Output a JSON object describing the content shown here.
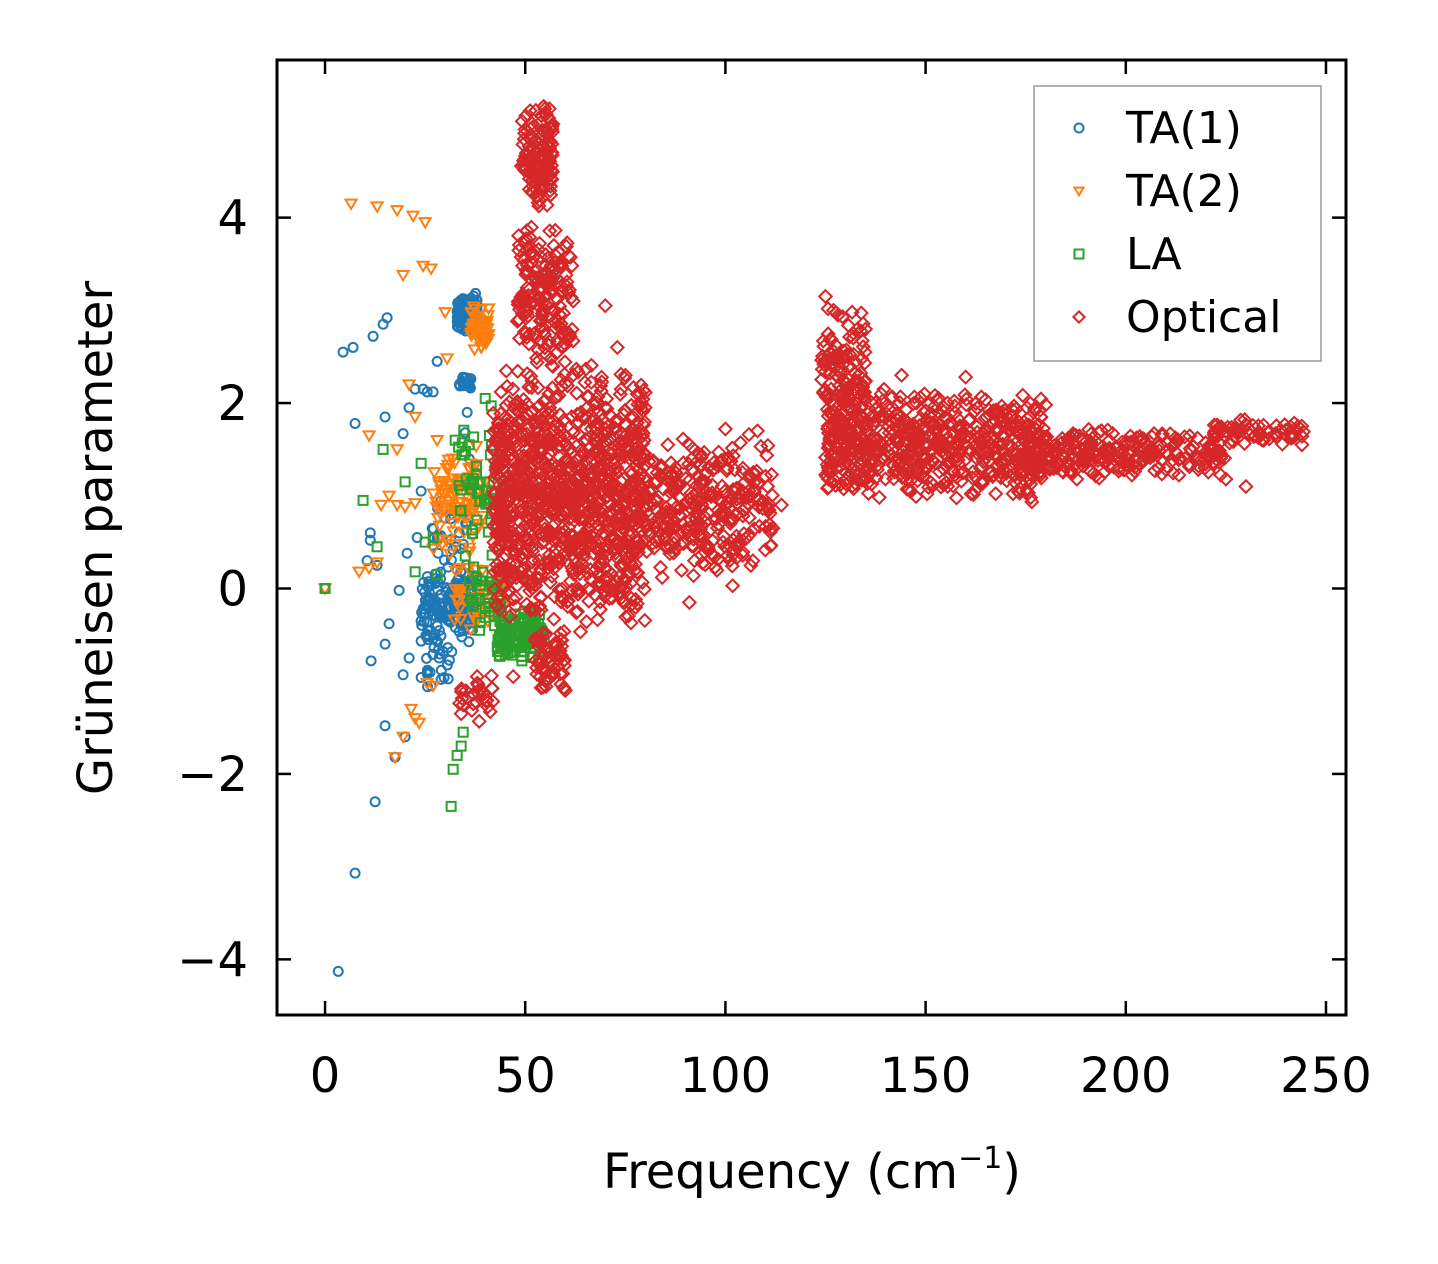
{
  "chart_data": {
    "type": "scatter",
    "title": "",
    "xlabel": "Frequency (cm",
    "xlabel_sup": "−1",
    "xlabel_close": ")",
    "ylabel": "Grüneisen parameter",
    "xlim": [
      -12,
      255
    ],
    "ylim": [
      -4.6,
      5.7
    ],
    "xticks": [
      0,
      50,
      100,
      150,
      200,
      250
    ],
    "xtick_labels": [
      "0",
      "50",
      "100",
      "150",
      "200",
      "250"
    ],
    "yticks": [
      -4,
      -2,
      0,
      2,
      4
    ],
    "ytick_labels": [
      "−4",
      "−2",
      "0",
      "2",
      "4"
    ],
    "grid": false,
    "legend_position": "top-right",
    "series": [
      {
        "name": "TA(1)",
        "marker": "circle",
        "color": "#1f77b4",
        "points": [
          [
            0,
            0
          ],
          [
            3.3,
            -4.13
          ],
          [
            7.5,
            -3.07
          ],
          [
            12.5,
            -2.3
          ],
          [
            17.5,
            -1.82
          ],
          [
            15,
            -1.48
          ],
          [
            20,
            -1.6
          ],
          [
            11.5,
            -0.78
          ],
          [
            15,
            -0.6
          ],
          [
            16,
            -0.38
          ],
          [
            19.5,
            -0.93
          ],
          [
            21,
            -0.75
          ],
          [
            24,
            -0.96
          ],
          [
            26.5,
            -1.05
          ],
          [
            29,
            -0.98
          ],
          [
            18.5,
            -0.02
          ],
          [
            24,
            -0.35
          ],
          [
            25.5,
            -0.52
          ],
          [
            13,
            0.25
          ],
          [
            10.5,
            0.3
          ],
          [
            20.5,
            0.38
          ],
          [
            23,
            0.55
          ],
          [
            11.3,
            0.52
          ],
          [
            11.3,
            0.6
          ],
          [
            7.5,
            1.78
          ],
          [
            19.5,
            1.67
          ],
          [
            15,
            1.85
          ],
          [
            21,
            1.95
          ],
          [
            22.5,
            2.15
          ],
          [
            24.5,
            2.15
          ],
          [
            25.5,
            2.12
          ],
          [
            27,
            2.12
          ],
          [
            4.5,
            2.55
          ],
          [
            7,
            2.6
          ],
          [
            12,
            2.72
          ],
          [
            14.5,
            2.85
          ],
          [
            15.5,
            2.92
          ],
          [
            24,
            1.05
          ],
          [
            28,
            2.45
          ],
          [
            33,
            0.2
          ],
          [
            35,
            1.12
          ],
          [
            35,
            1.68
          ],
          [
            35.5,
            1.9
          ],
          [
            28.5,
            -0.75
          ],
          [
            29.5,
            -0.68
          ],
          [
            33.5,
            0.6
          ],
          [
            36,
            1.4
          ],
          [
            26.5,
            0.05
          ],
          [
            27.5,
            -0.5
          ],
          [
            31,
            -0.3
          ]
        ],
        "clusters": [
          {
            "x": [
              33,
              38
            ],
            "y": [
              2.75,
              3.2
            ],
            "n": 160
          },
          {
            "x": [
              33.5,
              36.5
            ],
            "y": [
              2.15,
              2.3
            ],
            "n": 25
          },
          {
            "x": [
              24,
              38
            ],
            "y": [
              -0.6,
              0.25
            ],
            "n": 140
          },
          {
            "x": [
              26,
              36
            ],
            "y": [
              -0.5,
              1.3
            ],
            "n": 40
          },
          {
            "x": [
              25,
              32
            ],
            "y": [
              -1.1,
              -0.45
            ],
            "n": 20
          }
        ]
      },
      {
        "name": "TA(2)",
        "marker": "triangle-down",
        "color": "#ff7f0e",
        "points": [
          [
            6.5,
            4.15
          ],
          [
            13,
            4.12
          ],
          [
            18,
            4.08
          ],
          [
            22,
            4.02
          ],
          [
            25,
            3.95
          ],
          [
            19.5,
            3.38
          ],
          [
            24.5,
            3.48
          ],
          [
            26.5,
            3.45
          ],
          [
            30,
            2.98
          ],
          [
            30.5,
            2.48
          ],
          [
            21,
            2.2
          ],
          [
            11,
            1.65
          ],
          [
            18,
            1.5
          ],
          [
            22.5,
            1.85
          ],
          [
            28,
            1.6
          ],
          [
            8.5,
            0.18
          ],
          [
            11,
            0.22
          ],
          [
            13,
            0.28
          ],
          [
            14,
            0.9
          ],
          [
            16,
            1.0
          ],
          [
            18,
            0.9
          ],
          [
            20,
            0.88
          ],
          [
            22.5,
            0.92
          ],
          [
            17.5,
            -1.82
          ],
          [
            19.5,
            -1.6
          ],
          [
            21.5,
            -1.3
          ],
          [
            23.5,
            -1.45
          ],
          [
            25.5,
            -1.02
          ],
          [
            27,
            -1.05
          ],
          [
            22.5,
            -1.4
          ],
          [
            0,
            0
          ]
        ],
        "clusters": [
          {
            "x": [
              36.5,
              41
            ],
            "y": [
              2.55,
              3.1
            ],
            "n": 60
          },
          {
            "x": [
              27,
              40
            ],
            "y": [
              0.3,
              1.6
            ],
            "n": 90
          },
          {
            "x": [
              32,
              45
            ],
            "y": [
              -0.5,
              0.3
            ],
            "n": 50
          }
        ]
      },
      {
        "name": "LA",
        "marker": "square",
        "color": "#2ca02c",
        "points": [
          [
            0,
            0
          ],
          [
            9.5,
            0.95
          ],
          [
            14.5,
            1.5
          ],
          [
            20,
            1.15
          ],
          [
            24,
            1.35
          ],
          [
            13,
            0.45
          ],
          [
            25,
            0.5
          ],
          [
            31.5,
            -2.35
          ],
          [
            32,
            -1.95
          ],
          [
            33,
            -1.8
          ],
          [
            34.5,
            -1.55
          ],
          [
            34,
            -1.7
          ],
          [
            27,
            0.55
          ],
          [
            28,
            0.15
          ],
          [
            22.5,
            0.18
          ],
          [
            32.5,
            1.6
          ],
          [
            36,
            1.55
          ],
          [
            41.5,
            1.97
          ],
          [
            40,
            2.05
          ],
          [
            44,
            0.75
          ],
          [
            43.5,
            0.18
          ]
        ],
        "clusters": [
          {
            "x": [
              43,
              55
            ],
            "y": [
              -0.8,
              -0.2
            ],
            "n": 130
          },
          {
            "x": [
              33,
              44
            ],
            "y": [
              0.3,
              1.9
            ],
            "n": 50
          },
          {
            "x": [
              36,
              44
            ],
            "y": [
              -0.55,
              0.25
            ],
            "n": 35
          }
        ]
      },
      {
        "name": "Optical",
        "marker": "diamond",
        "color": "#d62728",
        "points": [
          [
            125,
            3.15
          ],
          [
            127,
            3.0
          ],
          [
            132,
            2.75
          ],
          [
            144,
            2.3
          ],
          [
            160,
            2.28
          ],
          [
            230,
            1.1
          ],
          [
            225,
            1.18
          ],
          [
            244,
            1.55
          ],
          [
            100,
            1.72
          ],
          [
            108,
            1.7
          ],
          [
            114,
            0.9
          ],
          [
            91,
            -0.15
          ],
          [
            75,
            2.3
          ],
          [
            62,
            3.1
          ],
          [
            70,
            3.05
          ],
          [
            73,
            2.6
          ],
          [
            60,
            -1.1
          ],
          [
            34,
            -1.35
          ],
          [
            38,
            -0.95
          ],
          [
            47,
            -0.95
          ]
        ],
        "clusters": [
          {
            "x": [
              49,
              57
            ],
            "y": [
              4.0,
              5.25
            ],
            "n": 120
          },
          {
            "x": [
              48,
              62
            ],
            "y": [
              2.3,
              4.0
            ],
            "n": 180
          },
          {
            "x": [
              42,
              80
            ],
            "y": [
              -0.5,
              2.5
            ],
            "n": 1100
          },
          {
            "x": [
              80,
              112
            ],
            "y": [
              0.0,
              1.7
            ],
            "n": 320
          },
          {
            "x": [
              52,
              60
            ],
            "y": [
              -1.2,
              -0.4
            ],
            "n": 60
          },
          {
            "x": [
              124,
              135
            ],
            "y": [
              1.5,
              3.1
            ],
            "n": 120
          },
          {
            "x": [
              125,
              180
            ],
            "y": [
              0.9,
              2.2
            ],
            "n": 650
          },
          {
            "x": [
              175,
              225
            ],
            "y": [
              1.15,
              1.75
            ],
            "n": 260
          },
          {
            "x": [
              222,
              245
            ],
            "y": [
              1.5,
              1.85
            ],
            "n": 60
          },
          {
            "x": [
              33,
              42
            ],
            "y": [
              -1.5,
              -0.8
            ],
            "n": 25
          }
        ]
      }
    ]
  }
}
